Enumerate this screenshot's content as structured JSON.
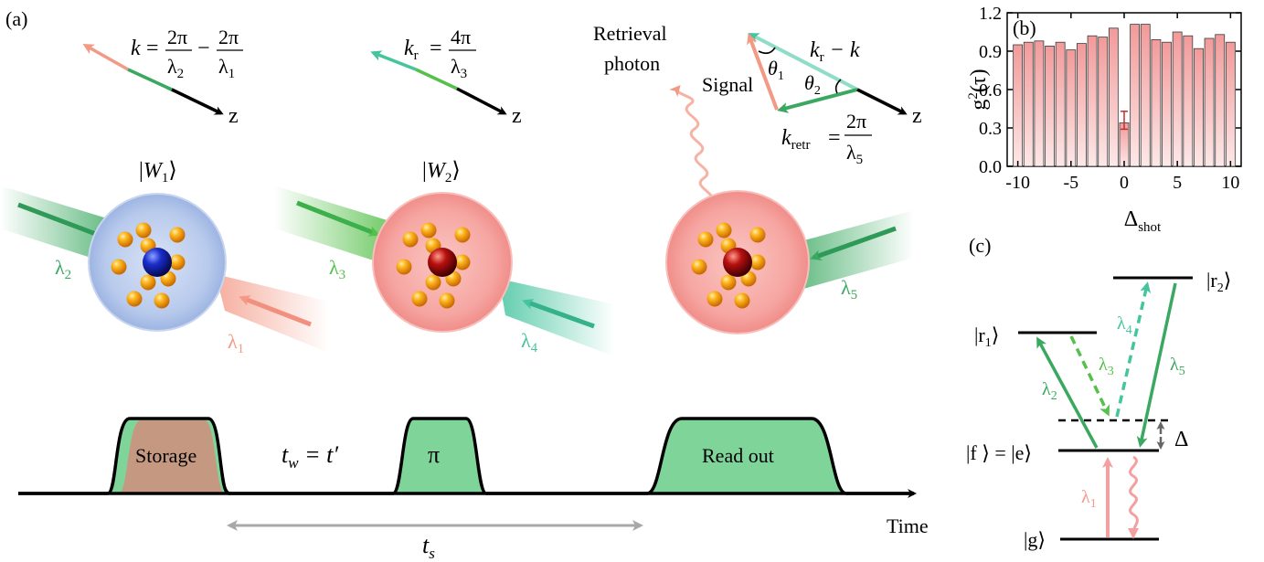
{
  "panels": {
    "a": "(a)",
    "b": "(b)",
    "c": "(c)"
  },
  "vectors": {
    "k": {
      "lhs": "k",
      "num1": "2π",
      "den1": "λ",
      "sub1": "2",
      "minus": "−",
      "num2": "2π",
      "den2": "λ",
      "sub2": "1",
      "axis": "z"
    },
    "kr": {
      "lhs": "k",
      "lhs_sub": "r",
      "num": "4π",
      "den": "λ",
      "den_sub": "3",
      "axis": "z"
    },
    "triangle": {
      "top": "k",
      "top_sub": "r",
      "top_rest": " − k",
      "signal": "Signal",
      "theta1": "θ",
      "theta1_sub": "1",
      "theta2": "θ",
      "theta2_sub": "2",
      "kretr": "k",
      "kretr_sub": "retr",
      "num": "2π",
      "den": "λ",
      "den_sub": "5",
      "axis": "z"
    },
    "retrieval": [
      "Retrieval",
      "photon"
    ]
  },
  "states": {
    "w1": {
      "bra": "|",
      "w": "W",
      "sub": "1",
      "ket": "⟩"
    },
    "w2": {
      "bra": "|",
      "w": "W",
      "sub": "2",
      "ket": "⟩"
    }
  },
  "beams": {
    "l2": {
      "sym": "λ",
      "sub": "2"
    },
    "l1": {
      "sym": "λ",
      "sub": "1"
    },
    "l3": {
      "sym": "λ",
      "sub": "3"
    },
    "l4": {
      "sym": "λ",
      "sub": "4"
    },
    "l5": {
      "sym": "λ",
      "sub": "5"
    }
  },
  "timeline": {
    "storage": "Storage",
    "tw": "t",
    "tw_sub": "w",
    "tw_rest": " = t′",
    "pi": "π",
    "readout": "Read out",
    "time": "Time",
    "ts": "t",
    "ts_sub": "s"
  },
  "levels": {
    "r2": {
      "text": "|r",
      "sub": "2",
      "ket": "⟩"
    },
    "r1": {
      "text": "|r",
      "sub": "1",
      "ket": "⟩"
    },
    "fe": "|f ⟩ = |e⟩",
    "g": "|g⟩",
    "delta": "Δ",
    "l1": {
      "sym": "λ",
      "sub": "1"
    },
    "l2": {
      "sym": "λ",
      "sub": "2"
    },
    "l3": {
      "sym": "λ",
      "sub": "3"
    },
    "l4": {
      "sym": "λ",
      "sub": "4"
    },
    "l5": {
      "sym": "λ",
      "sub": "5"
    }
  },
  "colors": {
    "green": "#3aa860",
    "lightgreen": "#55c04a",
    "teal": "#45c49e",
    "salmon": "#f39a86",
    "pink_fill": "#f5a5a5",
    "blue_atom": "#1a2ecc",
    "red_atom": "#b81010",
    "gold": "#f5a000",
    "bar_fill": "#f3a0a0"
  },
  "chart_data": {
    "type": "bar",
    "title": "",
    "xlabel": "Δshot",
    "ylabel": "g²(τ)",
    "x": [
      -10,
      -9,
      -8,
      -7,
      -6,
      -5,
      -4,
      -3,
      -2,
      -1,
      0,
      1,
      2,
      3,
      4,
      5,
      6,
      7,
      8,
      9,
      10
    ],
    "values": [
      0.95,
      0.97,
      0.98,
      0.94,
      0.97,
      0.91,
      0.96,
      1.02,
      1.01,
      1.08,
      0.34,
      1.11,
      1.11,
      0.99,
      0.97,
      1.05,
      1.02,
      0.92,
      1.0,
      1.03,
      0.97
    ],
    "error": {
      "x": 0,
      "low": 0.29,
      "high": 0.43
    },
    "xlim": [
      -11,
      11
    ],
    "ylim": [
      0.0,
      1.2
    ],
    "xticks": [
      "-10",
      "-5",
      "0",
      "5",
      "10"
    ],
    "yticks": [
      "0.0",
      "0.3",
      "0.6",
      "0.9",
      "1.2"
    ],
    "grid": false
  }
}
